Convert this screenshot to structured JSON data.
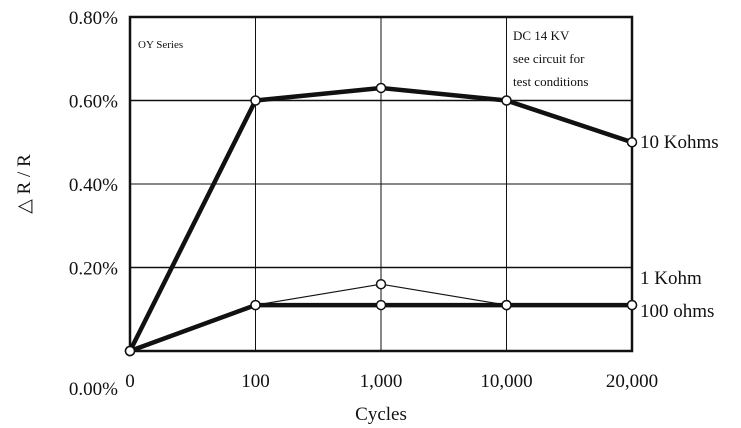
{
  "chart_data": {
    "type": "line",
    "categories": [
      "0",
      "100",
      "1,000",
      "10,000",
      "20,000"
    ],
    "xlabel": "Cycles",
    "ylabel": "△ R / R",
    "y_ticks": [
      "0.00%",
      "0.20%",
      "0.40%",
      "0.60%",
      "0.80%"
    ],
    "ylim": [
      0.0,
      0.8
    ],
    "grid": true,
    "series": [
      {
        "name": "10 Kohms",
        "values": [
          0.0,
          0.6,
          0.63,
          0.6,
          0.5
        ]
      },
      {
        "name": "1 Kohm",
        "values": [
          0.0,
          0.11,
          0.16,
          0.11,
          0.11
        ]
      },
      {
        "name": "100 ohms",
        "values": [
          0.0,
          0.11,
          0.11,
          0.11,
          0.11
        ]
      }
    ],
    "annotations": {
      "top_left": "OY Series",
      "top_right": [
        "DC 14 KV",
        "see circuit for",
        "test conditions"
      ]
    },
    "extra_reference_lines": [
      0.6,
      0.2
    ]
  }
}
